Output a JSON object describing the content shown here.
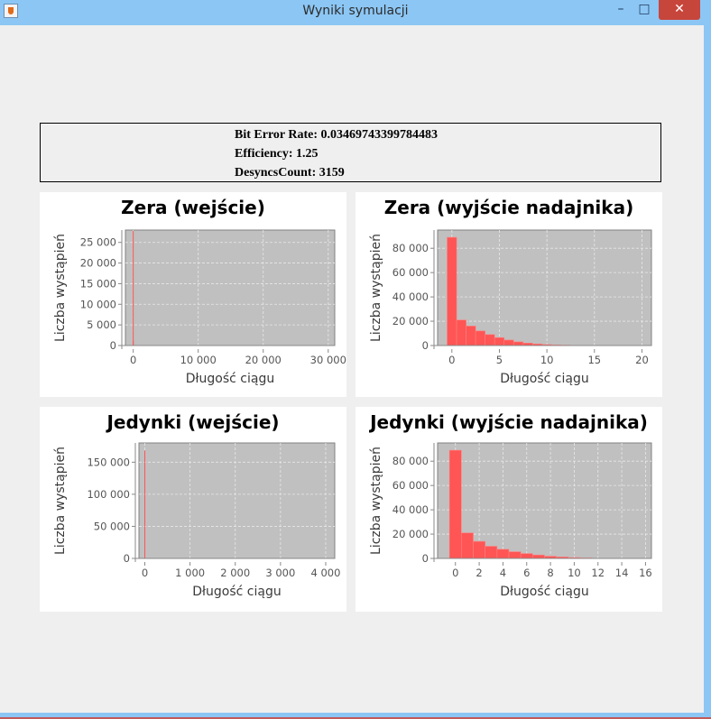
{
  "window": {
    "title": "Wyniki symulacji",
    "min_glyph": "–",
    "max_glyph": "□",
    "close_glyph": "✕"
  },
  "stats": {
    "bit_error_rate": "Bit Error Rate: 0.03469743399784483",
    "efficiency": "Efficiency: 1.25",
    "desyncs": "DesyncsCount: 3159"
  },
  "colors": {
    "plot_bg": "#c0c0c0",
    "bar": "#ff5555",
    "bar_edge": "#ff8080",
    "grid": "#e8e8e8"
  },
  "chart_data": [
    {
      "type": "bar",
      "title": "Zera (wejście)",
      "xlabel": "Długość ciągu",
      "ylabel": "Liczba wystąpień",
      "xlim": [
        -1200,
        31000
      ],
      "ylim": [
        0,
        28000
      ],
      "xticks": [
        0,
        10000,
        20000,
        30000
      ],
      "xtick_labels": [
        "0",
        "10 000",
        "20 000",
        "30 000"
      ],
      "yticks": [
        0,
        5000,
        10000,
        15000,
        20000,
        25000
      ],
      "ytick_labels": [
        "0",
        "5 000",
        "10 000",
        "15 000",
        "20 000",
        "25 000"
      ],
      "bar_width": 1,
      "min_bar_px": 1,
      "x": [
        0,
        1
      ],
      "values": [
        27800,
        1200
      ]
    },
    {
      "type": "bar",
      "title": "Zera (wyjście nadajnika)",
      "xlabel": "Długość ciągu",
      "ylabel": "Liczba wystąpień",
      "xlim": [
        -1.5,
        21
      ],
      "ylim": [
        0,
        95000
      ],
      "xticks": [
        0,
        5,
        10,
        15,
        20
      ],
      "xtick_labels": [
        "0",
        "5",
        "10",
        "15",
        "20"
      ],
      "yticks": [
        0,
        20000,
        40000,
        60000,
        80000
      ],
      "ytick_labels": [
        "0",
        "20 000",
        "40 000",
        "60 000",
        "80 000"
      ],
      "bar_width": 1,
      "min_bar_px": 0,
      "x": [
        -0.5,
        0.5,
        1.5,
        2.5,
        3.5,
        4.5,
        5.5,
        6.5,
        7.5,
        8.5,
        9.5,
        10.5,
        11.5
      ],
      "values": [
        89000,
        21000,
        16000,
        12000,
        9000,
        6500,
        4500,
        3000,
        2000,
        1300,
        800,
        500,
        300
      ]
    },
    {
      "type": "bar",
      "title": "Jedynki (wejście)",
      "xlabel": "Długość ciągu",
      "ylabel": "Liczba wystąpień",
      "xlim": [
        -130,
        4200
      ],
      "ylim": [
        0,
        180000
      ],
      "xticks": [
        0,
        1000,
        2000,
        3000,
        4000
      ],
      "xtick_labels": [
        "0",
        "1 000",
        "2 000",
        "3 000",
        "4 000"
      ],
      "yticks": [
        0,
        50000,
        100000,
        150000
      ],
      "ytick_labels": [
        "0",
        "50 000",
        "100 000",
        "150 000"
      ],
      "bar_width": 1,
      "min_bar_px": 1,
      "x": [
        0
      ],
      "values": [
        168000
      ]
    },
    {
      "type": "bar",
      "title": "Jedynki (wyjście nadajnika)",
      "xlabel": "Długość ciągu",
      "ylabel": "Liczba wystąpień",
      "xlim": [
        -1.5,
        16.5
      ],
      "ylim": [
        0,
        95000
      ],
      "xticks": [
        0,
        2,
        4,
        6,
        8,
        10,
        12,
        14,
        16
      ],
      "xtick_labels": [
        "0",
        "2",
        "4",
        "6",
        "8",
        "10",
        "12",
        "14",
        "16"
      ],
      "yticks": [
        0,
        20000,
        40000,
        60000,
        80000
      ],
      "ytick_labels": [
        "0",
        "20 000",
        "40 000",
        "60 000",
        "80 000"
      ],
      "bar_width": 1,
      "min_bar_px": 0,
      "x": [
        -0.5,
        0.5,
        1.5,
        2.5,
        3.5,
        4.5,
        5.5,
        6.5,
        7.5,
        8.5,
        9.5,
        10.5
      ],
      "values": [
        89000,
        21000,
        14000,
        10000,
        7500,
        5500,
        4000,
        2800,
        1800,
        1200,
        700,
        400
      ]
    }
  ]
}
